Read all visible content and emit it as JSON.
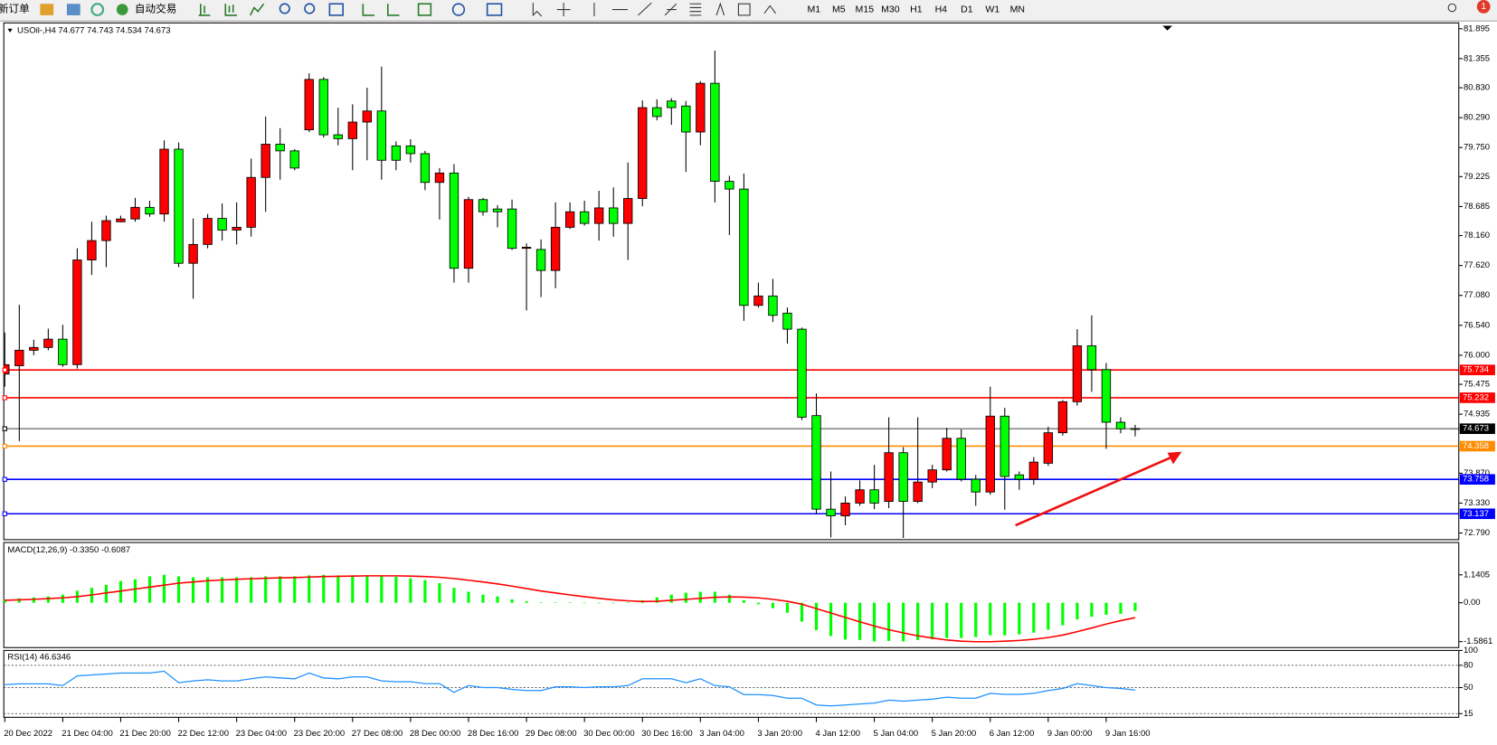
{
  "toolbar": {
    "new_order": "新订单",
    "auto_trading": "自动交易",
    "timeframes": [
      "M1",
      "M5",
      "M15",
      "M30",
      "H1",
      "H4",
      "D1",
      "W1",
      "MN"
    ],
    "alert_count": "1"
  },
  "chart_data": [
    {
      "type": "candlestick",
      "title": "USOil-,H4 74.677 74.743 74.534 74.673",
      "categories": [
        "20 Dec 2022",
        null,
        null,
        null,
        "21 Dec 04:00",
        null,
        null,
        null,
        "21 Dec 20:00",
        null,
        null,
        null,
        "22 Dec 12:00",
        null,
        null,
        null,
        "23 Dec 04:00",
        null,
        null,
        null,
        "23 Dec 20:00",
        null,
        null,
        null,
        "27 Dec 08:00",
        null,
        null,
        null,
        "28 Dec 00:00",
        null,
        null,
        null,
        "28 Dec 16:00",
        null,
        null,
        null,
        "29 Dec 08:00",
        null,
        null,
        null,
        "30 Dec 00:00",
        null,
        null,
        null,
        "30 Dec 16:00",
        null,
        null,
        null,
        "3 Jan 04:00",
        null,
        null,
        null,
        "3 Jan 20:00",
        null,
        null,
        null,
        "4 Jan 12:00",
        null,
        null,
        null,
        "5 Jan 04:00",
        null,
        null,
        null,
        "5 Jan 20:00",
        null,
        null,
        null,
        "6 Jan 12:00",
        null,
        null,
        null,
        "9 Jan 00:00",
        null,
        null,
        null,
        "9 Jan 16:00",
        null,
        null
      ],
      "open": [
        75.66,
        75.81,
        76.09,
        76.14,
        76.29,
        75.83,
        77.72,
        78.07,
        78.41,
        78.46,
        78.67,
        78.55,
        79.72,
        77.66,
        78.0,
        78.47,
        78.26,
        78.31,
        79.21,
        79.81,
        79.69,
        80.07,
        80.98,
        79.98,
        79.91,
        80.21,
        80.41,
        79.78,
        79.78,
        79.64,
        79.12,
        79.29,
        77.57,
        78.81,
        78.64,
        78.64,
        77.93,
        77.91,
        77.53,
        78.31,
        78.59,
        78.38,
        78.66,
        78.38,
        78.83,
        80.47,
        80.59,
        80.5,
        80.03,
        80.91,
        79.14,
        79.0,
        76.9,
        77.07,
        76.76,
        76.47,
        74.91,
        73.22,
        73.1,
        73.33,
        73.57,
        73.36,
        74.24,
        73.36,
        73.71,
        73.93,
        74.5,
        73.76,
        73.53,
        74.9,
        73.84,
        73.76,
        74.05,
        74.6,
        75.16,
        76.17,
        75.74,
        74.79,
        74.677
      ],
      "high": [
        76.41,
        76.91,
        76.28,
        76.48,
        76.55,
        77.93,
        78.41,
        78.52,
        78.52,
        78.84,
        78.79,
        79.88,
        79.84,
        78.47,
        78.55,
        78.74,
        78.76,
        79.55,
        80.31,
        80.1,
        79.72,
        81.09,
        81.02,
        80.47,
        80.53,
        80.83,
        81.21,
        79.86,
        79.9,
        79.69,
        79.38,
        79.45,
        78.86,
        78.84,
        78.71,
        78.81,
        78.02,
        78.09,
        78.76,
        78.76,
        78.79,
        78.97,
        79.03,
        79.48,
        80.6,
        80.62,
        80.64,
        80.59,
        80.95,
        81.5,
        79.24,
        79.28,
        77.31,
        77.38,
        76.86,
        76.5,
        75.31,
        73.9,
        73.45,
        73.74,
        74.02,
        74.88,
        74.34,
        74.88,
        74.02,
        74.69,
        74.66,
        73.84,
        75.43,
        75.05,
        73.9,
        74.16,
        74.71,
        75.19,
        76.47,
        76.72,
        75.86,
        74.88,
        74.743
      ],
      "low": [
        75.43,
        74.45,
        76.0,
        76.09,
        75.79,
        75.76,
        77.45,
        77.59,
        78.4,
        78.41,
        78.5,
        78.41,
        77.59,
        77.02,
        77.93,
        78.07,
        78.0,
        78.14,
        78.59,
        79.17,
        79.34,
        80.03,
        79.93,
        79.79,
        79.34,
        79.52,
        79.17,
        79.34,
        79.48,
        78.98,
        78.45,
        77.31,
        77.31,
        78.52,
        78.31,
        77.9,
        76.81,
        77.05,
        77.21,
        78.28,
        78.34,
        78.07,
        78.14,
        77.72,
        78.69,
        80.24,
        80.16,
        79.31,
        79.79,
        78.76,
        78.17,
        76.62,
        76.86,
        76.6,
        76.21,
        74.83,
        73.14,
        72.71,
        72.93,
        73.28,
        73.22,
        73.24,
        72.7,
        73.33,
        73.6,
        73.9,
        73.72,
        73.28,
        73.48,
        73.21,
        73.57,
        73.66,
        74.0,
        74.55,
        75.09,
        75.34,
        74.31,
        74.59,
        74.534
      ],
      "close": [
        75.83,
        76.09,
        76.14,
        76.29,
        75.83,
        77.72,
        78.07,
        78.43,
        78.46,
        78.67,
        78.55,
        79.72,
        77.66,
        78.0,
        78.47,
        78.26,
        78.31,
        79.21,
        79.81,
        79.69,
        79.38,
        80.98,
        79.98,
        79.91,
        80.21,
        80.41,
        79.52,
        79.52,
        79.64,
        79.12,
        79.29,
        77.57,
        78.81,
        78.59,
        78.59,
        77.93,
        77.95,
        77.53,
        78.31,
        78.59,
        78.38,
        78.66,
        78.38,
        78.83,
        80.47,
        80.31,
        80.47,
        80.03,
        80.91,
        79.14,
        79.0,
        76.9,
        77.07,
        76.72,
        76.47,
        74.88,
        73.22,
        73.1,
        73.33,
        73.57,
        73.33,
        74.24,
        73.36,
        73.71,
        73.93,
        74.5,
        73.76,
        73.53,
        74.9,
        73.81,
        73.76,
        74.07,
        74.6,
        75.16,
        76.17,
        75.74,
        74.79,
        74.67,
        74.673
      ],
      "up_color": "#ff0000",
      "down_color": "#00ff00",
      "ylim": [
        72.67,
        82.0
      ],
      "yticks": [
        81.895,
        81.355,
        {
          "value": 80.83,
          "label": "80.830"
        },
        {
          "value": 80.29,
          "label": "80.290"
        },
        {
          "value": 79.75,
          "label": "79.750"
        },
        79.225,
        78.685,
        {
          "value": 78.16,
          "label": "78.160"
        },
        {
          "value": 77.62,
          "label": "77.620"
        },
        {
          "value": 77.08,
          "label": "77.080"
        },
        {
          "value": 76.54,
          "label": "76.540"
        },
        {
          "value": 76.0,
          "label": "76.000"
        },
        75.475,
        74.935,
        {
          "value": 73.87,
          "label": "73.870"
        },
        {
          "value": 73.33,
          "label": "73.330"
        },
        {
          "value": 72.79,
          "label": "72.790"
        }
      ],
      "levels": [
        {
          "value": 75.734,
          "color": "#ff0000"
        },
        {
          "value": 75.232,
          "color": "#ff0000"
        },
        {
          "value": 74.673,
          "color": "#000000"
        },
        {
          "value": 74.358,
          "color": "#ff8c00"
        },
        {
          "value": 73.758,
          "color": "#0000ff"
        },
        {
          "value": 73.137,
          "color": "#0000ff"
        }
      ]
    },
    {
      "type": "macd",
      "title": "MACD(12,26,9) -0.3350 -0.6087",
      "values": [
        0.14,
        0.18,
        0.22,
        0.26,
        0.33,
        0.49,
        0.61,
        0.73,
        0.89,
        0.96,
        1.08,
        1.14,
        1.08,
        1.04,
        1.04,
        1.04,
        1.04,
        1.04,
        1.08,
        1.08,
        1.08,
        1.12,
        1.14,
        1.12,
        1.12,
        1.12,
        1.1,
        1.06,
        1.0,
        0.92,
        0.8,
        0.61,
        0.45,
        0.33,
        0.26,
        0.14,
        0.06,
        0.02,
        0.02,
        0.02,
        0.0,
        -0.02,
        -0.02,
        0.02,
        0.1,
        0.22,
        0.33,
        0.41,
        0.45,
        0.45,
        0.33,
        0.1,
        -0.06,
        -0.22,
        -0.41,
        -0.77,
        -1.12,
        -1.36,
        -1.5,
        -1.52,
        -1.58,
        -1.56,
        -1.58,
        -1.52,
        -1.49,
        -1.44,
        -1.44,
        -1.4,
        -1.33,
        -1.33,
        -1.29,
        -1.22,
        -1.1,
        -0.92,
        -0.68,
        -0.57,
        -0.49,
        -0.45,
        -0.335
      ],
      "signal_values": [
        0.1,
        0.12,
        0.14,
        0.17,
        0.2,
        0.25,
        0.32,
        0.4,
        0.48,
        0.56,
        0.64,
        0.72,
        0.8,
        0.85,
        0.9,
        0.93,
        0.96,
        0.98,
        1.0,
        1.02,
        1.03,
        1.05,
        1.07,
        1.08,
        1.09,
        1.1,
        1.1,
        1.1,
        1.09,
        1.07,
        1.04,
        0.99,
        0.92,
        0.85,
        0.77,
        0.68,
        0.58,
        0.48,
        0.4,
        0.32,
        0.25,
        0.18,
        0.12,
        0.08,
        0.05,
        0.06,
        0.1,
        0.14,
        0.18,
        0.22,
        0.24,
        0.23,
        0.2,
        0.14,
        0.06,
        -0.06,
        -0.24,
        -0.42,
        -0.6,
        -0.78,
        -0.95,
        -1.1,
        -1.23,
        -1.35,
        -1.44,
        -1.52,
        -1.57,
        -1.59,
        -1.59,
        -1.57,
        -1.54,
        -1.49,
        -1.42,
        -1.32,
        -1.18,
        -1.03,
        -0.87,
        -0.73,
        -0.6087
      ],
      "color": "#00ff00",
      "signal_color": "#ff0000",
      "ylim": [
        -1.83,
        2.46
      ],
      "yticks": [
        1.1405,
        {
          "value": 0,
          "label": "0.00"
        },
        -1.5861
      ]
    },
    {
      "type": "rsi",
      "title": "RSI(14) 46.6346",
      "values": [
        54,
        55,
        55,
        55,
        52.7,
        65.7,
        67,
        68.3,
        69.6,
        69.6,
        69.6,
        72,
        56.6,
        59,
        60.5,
        59,
        59,
        61.8,
        64.4,
        63,
        61.8,
        69.6,
        63,
        61.8,
        64.4,
        64.4,
        59,
        57.9,
        57.9,
        55.3,
        55.3,
        43.6,
        52.7,
        50,
        50,
        47.5,
        46,
        46,
        51,
        51,
        50,
        51,
        51,
        52.7,
        61.8,
        61.8,
        61.8,
        56.6,
        61.8,
        52.7,
        51,
        40.6,
        40.6,
        39.3,
        35.7,
        35.7,
        26.6,
        25.4,
        26.6,
        27.9,
        29.2,
        33.1,
        31.8,
        33.1,
        34.4,
        37,
        35.7,
        35.7,
        42.2,
        40.9,
        40.9,
        42.2,
        46,
        48.8,
        55.3,
        52.7,
        50,
        48.8,
        46.6346
      ],
      "color": "#1e90ff",
      "ylim": [
        10,
        100
      ],
      "yticks": [
        100,
        80,
        50,
        15
      ],
      "dashed_levels": [
        80,
        50,
        15
      ]
    }
  ]
}
